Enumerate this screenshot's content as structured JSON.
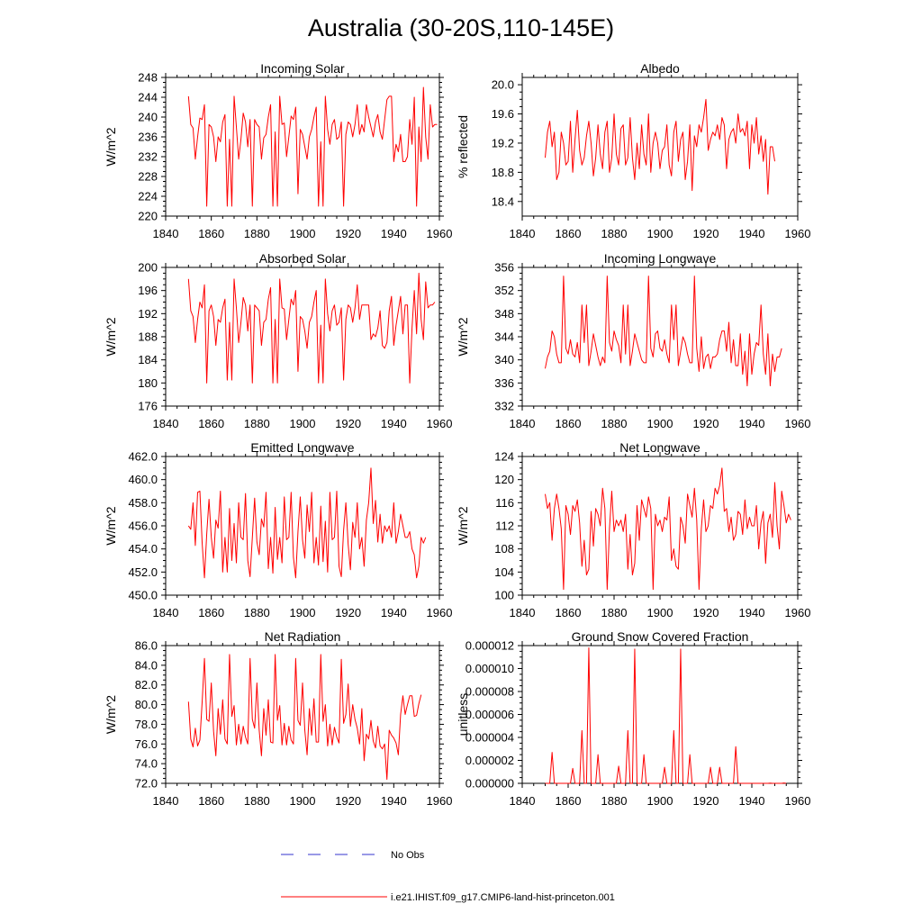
{
  "title": "Australia (30-20S,110-145E)",
  "legend": [
    {
      "label": "No Obs",
      "color": "#3333cc",
      "style": "dashed"
    },
    {
      "label": "i.e21.IHIST.f09_g17.CMIP6-land-hist-princeton.001",
      "color": "#ff0000",
      "style": "solid"
    }
  ],
  "chart_data": [
    {
      "type": "line",
      "title": "Incoming Solar",
      "ylabel": "W/m^2",
      "xlim": [
        1840,
        1960
      ],
      "ylim": [
        220,
        248
      ],
      "xticks": [
        1840,
        1860,
        1880,
        1900,
        1920,
        1940,
        1960
      ],
      "yticks": [
        "220",
        "224",
        "228",
        "232",
        "236",
        "240",
        "244",
        "248"
      ],
      "color": "#ff0000",
      "x_start": 1850,
      "values": [
        244.2,
        238.5,
        237.8,
        231.5,
        236.0,
        239.8,
        239.5,
        242.5,
        222.0,
        238.5,
        238.0,
        236.0,
        231.0,
        236.0,
        235.0,
        239.0,
        240.5,
        222.0,
        235.5,
        222.0,
        244.2,
        238.0,
        231.5,
        235.5,
        240.8,
        239.0,
        234.0,
        239.5,
        222.0,
        239.5,
        238.5,
        238.0,
        231.5,
        235.8,
        236.5,
        240.0,
        242.5,
        222.0,
        237.0,
        222.0,
        244.2,
        238.5,
        238.8,
        232.0,
        236.0,
        240.2,
        239.5,
        242.0,
        224.5,
        237.5,
        236.5,
        234.0,
        231.5,
        236.0,
        237.5,
        240.0,
        242.0,
        222.0,
        235.0,
        222.0,
        244.2,
        237.5,
        234.5,
        238.5,
        239.5,
        235.5,
        236.0,
        239.0,
        222.0,
        236.5,
        239.0,
        238.5,
        236.0,
        238.5,
        242.5,
        236.5,
        238.5,
        237.0,
        242.5,
        240.0,
        238.0,
        236.0,
        239.0,
        240.5,
        237.0,
        235.5,
        239.5,
        243.5,
        244.2,
        244.2,
        231.0,
        234.5,
        233.0,
        236.5,
        231.0,
        231.0,
        232.0,
        239.5,
        234.5,
        244.0,
        222.0,
        238.0,
        231.0,
        246.0,
        236.0,
        231.5,
        242.5,
        238.0,
        238.5,
        238.5
      ]
    },
    {
      "type": "line",
      "title": "Albedo",
      "ylabel": "% reflected",
      "xlim": [
        1840,
        1960
      ],
      "ylim": [
        18.2,
        20.1
      ],
      "xticks": [
        1840,
        1860,
        1880,
        1900,
        1920,
        1940,
        1960
      ],
      "yticks": [
        "18.4",
        "18.8",
        "19.2",
        "19.6",
        "20.0"
      ],
      "color": "#ff0000",
      "x_start": 1850,
      "values": [
        19.0,
        19.35,
        19.5,
        19.15,
        19.35,
        18.7,
        18.8,
        19.35,
        19.2,
        18.9,
        18.95,
        19.5,
        18.8,
        19.25,
        19.65,
        19.1,
        18.9,
        19.0,
        19.3,
        19.5,
        19.2,
        18.75,
        19.0,
        19.45,
        19.05,
        18.85,
        19.35,
        19.5,
        18.8,
        19.0,
        19.6,
        19.05,
        18.9,
        19.4,
        19.45,
        18.9,
        19.0,
        19.55,
        19.0,
        18.7,
        19.2,
        18.85,
        19.45,
        19.05,
        18.9,
        19.6,
        18.8,
        19.2,
        19.35,
        19.2,
        18.85,
        19.1,
        19.15,
        19.45,
        18.9,
        18.75,
        19.35,
        19.5,
        18.95,
        19.25,
        19.35,
        18.7,
        18.95,
        19.45,
        18.55,
        19.3,
        19.15,
        19.45,
        19.35,
        19.55,
        19.8,
        19.1,
        19.25,
        19.35,
        19.3,
        19.45,
        19.25,
        19.55,
        19.45,
        18.85,
        19.25,
        19.35,
        19.4,
        19.2,
        19.6,
        19.35,
        19.4,
        19.3,
        19.5,
        18.85,
        19.45,
        19.2,
        19.55,
        19.05,
        19.3,
        18.95,
        19.25,
        18.5,
        19.15,
        19.15,
        18.95
      ]
    },
    {
      "type": "line",
      "title": "Absorbed Solar",
      "ylabel": "W/m^2",
      "xlim": [
        1840,
        1960
      ],
      "ylim": [
        176,
        200
      ],
      "xticks": [
        1840,
        1860,
        1880,
        1900,
        1920,
        1940,
        1960
      ],
      "yticks": [
        "176",
        "180",
        "184",
        "188",
        "192",
        "196",
        "200"
      ],
      "color": "#ff0000",
      "x_start": 1850,
      "values": [
        198.0,
        192.5,
        191.5,
        187.0,
        191.0,
        194.0,
        193.0,
        197.0,
        180.0,
        192.5,
        193.5,
        191.5,
        186.5,
        191.0,
        190.5,
        193.0,
        194.5,
        180.5,
        190.5,
        180.5,
        198.0,
        193.0,
        187.0,
        190.5,
        194.8,
        193.5,
        189.0,
        193.5,
        180.0,
        193.5,
        193.0,
        192.5,
        186.5,
        190.5,
        191.0,
        194.5,
        196.5,
        180.0,
        191.0,
        180.0,
        198.0,
        193.0,
        192.8,
        187.5,
        191.0,
        194.5,
        193.5,
        196.0,
        182.0,
        191.5,
        191.0,
        189.0,
        186.0,
        190.5,
        191.5,
        194.0,
        196.0,
        180.0,
        190.0,
        180.0,
        198.0,
        192.0,
        189.0,
        192.5,
        193.5,
        190.0,
        190.5,
        193.0,
        180.5,
        191.0,
        193.5,
        193.0,
        190.5,
        193.0,
        197.0,
        191.0,
        193.5,
        193.5,
        193.5,
        193.5,
        187.5,
        188.5,
        188.0,
        189.5,
        192.5,
        186.5,
        186.0,
        187.0,
        192.5,
        195.0,
        186.5,
        190.0,
        192.5,
        195.0,
        188.5,
        193.5,
        193.5,
        180.0,
        189.5,
        196.0,
        188.5,
        199.0,
        191.0,
        187.5,
        197.5,
        193.0,
        193.5,
        193.5,
        194.0
      ]
    },
    {
      "type": "line",
      "title": "Incoming Longwave",
      "ylabel": "W/m^2",
      "xlim": [
        1840,
        1960
      ],
      "ylim": [
        332,
        356
      ],
      "xticks": [
        1840,
        1860,
        1880,
        1900,
        1920,
        1940,
        1960
      ],
      "yticks": [
        "332",
        "336",
        "340",
        "344",
        "348",
        "352",
        "356"
      ],
      "color": "#ff0000",
      "x_start": 1850,
      "values": [
        338.5,
        340.5,
        341.5,
        345.0,
        344.0,
        341.0,
        339.5,
        339.5,
        354.5,
        342.0,
        341.0,
        343.5,
        341.0,
        340.5,
        343.0,
        339.5,
        349.5,
        343.0,
        349.5,
        339.0,
        341.5,
        344.5,
        342.5,
        340.5,
        339.0,
        340.5,
        339.5,
        354.5,
        343.0,
        341.5,
        345.0,
        343.5,
        342.5,
        339.5,
        349.5,
        341.0,
        349.5,
        339.0,
        341.5,
        344.5,
        343.0,
        341.5,
        340.0,
        339.5,
        339.5,
        354.5,
        342.0,
        340.5,
        344.5,
        345.0,
        342.0,
        341.5,
        343.5,
        341.0,
        339.5,
        349.5,
        343.5,
        349.5,
        339.0,
        341.5,
        344.0,
        343.0,
        341.0,
        339.5,
        339.5,
        354.5,
        342.0,
        338.0,
        344.0,
        338.5,
        340.5,
        341.0,
        338.5,
        340.5,
        340.5,
        341.0,
        343.5,
        345.0,
        345.0,
        341.5,
        346.5,
        339.5,
        343.5,
        339.0,
        339.0,
        344.5,
        337.5,
        341.5,
        335.5,
        344.5,
        337.5,
        341.0,
        343.0,
        342.5,
        349.5,
        341.0,
        337.5,
        344.5,
        335.5,
        341.0,
        338.0,
        340.5,
        340.5,
        342.0
      ]
    },
    {
      "type": "line",
      "title": "Emitted Longwave",
      "ylabel": "W/m^2",
      "xlim": [
        1840,
        1960
      ],
      "ylim": [
        450.0,
        462.0
      ],
      "xticks": [
        1840,
        1860,
        1880,
        1900,
        1920,
        1940,
        1960
      ],
      "yticks": [
        "450.0",
        "452.0",
        "454.0",
        "456.0",
        "458.0",
        "460.0",
        "462.0"
      ],
      "color": "#ff0000",
      "x_start": 1850,
      "values": [
        456.0,
        455.7,
        458.0,
        454.3,
        458.9,
        459.0,
        454.5,
        451.5,
        455.3,
        458.3,
        455.0,
        453.2,
        456.5,
        455.8,
        459.0,
        452.0,
        455.0,
        452.0,
        457.5,
        453.0,
        456.2,
        452.8,
        458.0,
        455.0,
        454.8,
        458.8,
        453.0,
        451.6,
        455.0,
        458.4,
        454.6,
        453.5,
        456.6,
        455.9,
        458.9,
        452.3,
        455.0,
        451.9,
        457.6,
        453.1,
        455.0,
        452.8,
        458.5,
        454.8,
        455.0,
        458.9,
        453.3,
        451.5,
        455.5,
        458.5,
        454.8,
        453.2,
        457.8,
        455.5,
        458.9,
        452.8,
        455.0,
        452.6,
        457.7,
        452.9,
        456.4,
        452.0,
        458.9,
        454.8,
        455.0,
        459.0,
        452.5,
        451.6,
        455.6,
        458.0,
        454.4,
        452.2,
        456.3,
        455.0,
        458.0,
        454.0,
        455.0,
        452.5,
        456.5,
        458.0,
        461.0,
        456.2,
        458.2,
        454.6,
        457.0,
        454.5,
        456.0,
        455.5,
        456.0,
        455.0,
        458.0,
        454.5,
        455.5,
        457.0,
        456.0,
        455.0,
        455.0,
        455.5,
        454.0,
        453.5,
        451.5,
        452.5,
        455.0,
        454.5,
        455.0
      ]
    },
    {
      "type": "line",
      "title": "Net Longwave",
      "ylabel": "W/m^2",
      "xlim": [
        1840,
        1960
      ],
      "ylim": [
        100,
        124
      ],
      "xticks": [
        1840,
        1860,
        1880,
        1900,
        1920,
        1940,
        1960
      ],
      "yticks": [
        "100",
        "104",
        "108",
        "112",
        "116",
        "120",
        "124"
      ],
      "color": "#ff0000",
      "x_start": 1850,
      "values": [
        117.5,
        115.0,
        116.0,
        109.5,
        115.0,
        117.5,
        115.0,
        111.5,
        101.0,
        115.5,
        114.0,
        110.5,
        115.5,
        114.5,
        116.5,
        112.5,
        105.0,
        109.5,
        103.5,
        104.5,
        114.5,
        108.5,
        115.0,
        114.0,
        112.0,
        118.5,
        115.0,
        101.0,
        111.5,
        118.0,
        111.0,
        113.0,
        112.0,
        113.0,
        111.0,
        114.0,
        104.5,
        110.5,
        103.5,
        105.5,
        115.5,
        109.5,
        116.5,
        115.0,
        113.5,
        117.0,
        115.0,
        101.0,
        114.0,
        112.0,
        113.0,
        111.0,
        113.5,
        113.0,
        117.0,
        106.0,
        108.0,
        105.0,
        104.5,
        113.5,
        112.0,
        109.0,
        117.5,
        115.5,
        113.5,
        118.5,
        113.0,
        101.0,
        111.5,
        116.5,
        111.0,
        112.0,
        115.5,
        115.0,
        118.5,
        117.5,
        119.0,
        122.0,
        114.5,
        115.0,
        111.0,
        113.5,
        109.5,
        110.5,
        114.5,
        114.0,
        110.5,
        116.5,
        111.5,
        113.5,
        112.0,
        112.0,
        115.5,
        108.0,
        112.5,
        114.5,
        105.5,
        112.5,
        114.0,
        110.0,
        119.5,
        112.0,
        108.0,
        118.0,
        115.5,
        112.5,
        114.0,
        113.0
      ]
    },
    {
      "type": "line",
      "title": "Net Radiation",
      "ylabel": "W/m^2",
      "xlim": [
        1840,
        1960
      ],
      "ylim": [
        72.0,
        86.0
      ],
      "xticks": [
        1840,
        1860,
        1880,
        1900,
        1920,
        1940,
        1960
      ],
      "yticks": [
        "72.0",
        "74.0",
        "76.0",
        "78.0",
        "80.0",
        "82.0",
        "84.0",
        "86.0"
      ],
      "color": "#ff0000",
      "x_start": 1850,
      "values": [
        80.3,
        76.5,
        75.7,
        77.6,
        75.8,
        76.4,
        80.3,
        84.7,
        78.5,
        78.3,
        82.2,
        77.3,
        74.8,
        79.6,
        77.0,
        80.5,
        76.5,
        76.0,
        85.1,
        78.8,
        79.9,
        75.9,
        78.0,
        76.0,
        77.8,
        76.7,
        76.0,
        84.7,
        78.5,
        77.6,
        82.2,
        77.4,
        74.8,
        79.6,
        76.9,
        80.5,
        76.2,
        76.1,
        85.1,
        78.4,
        79.9,
        75.9,
        78.1,
        75.9,
        77.8,
        76.4,
        76.0,
        84.7,
        78.4,
        77.9,
        82.2,
        77.4,
        74.9,
        79.6,
        76.9,
        80.6,
        76.2,
        76.2,
        85.1,
        78.3,
        80.0,
        75.8,
        78.0,
        75.9,
        77.7,
        76.7,
        76.1,
        84.6,
        78.1,
        79.0,
        82.1,
        77.8,
        80.0,
        78.5,
        77.6,
        76.0,
        79.6,
        74.3,
        77.0,
        76.5,
        78.4,
        76.3,
        75.6,
        77.8,
        75.8,
        75.5,
        76.0,
        72.4,
        77.4,
        76.9,
        76.6,
        76.1,
        74.9,
        79.0,
        80.9,
        79.0,
        80.0,
        80.9,
        80.9,
        78.8,
        78.9,
        80.1,
        81.0
      ]
    },
    {
      "type": "line",
      "title": "Ground Snow Covered Fraction",
      "ylabel": "unitless",
      "xlim": [
        1840,
        1960
      ],
      "ylim": [
        0,
        1.2e-05
      ],
      "xticks": [
        1840,
        1860,
        1880,
        1900,
        1920,
        1940,
        1960
      ],
      "yticks": [
        "0.000000",
        "0.000002",
        "0.000004",
        "0.000006",
        "0.000008",
        "0.000010",
        "0.000012"
      ],
      "color": "#ff0000",
      "x_start": 1850,
      "values": [
        0,
        0,
        0,
        2.7e-06,
        0,
        0,
        0,
        0,
        0,
        0,
        0,
        0,
        1.3e-06,
        0,
        0,
        0,
        4.6e-06,
        0,
        0,
        1.18e-05,
        0,
        0,
        0,
        2.5e-06,
        0,
        0,
        0,
        0,
        0,
        0,
        0,
        0,
        1.5e-06,
        0,
        0,
        0,
        4.6e-06,
        0,
        0,
        1.17e-05,
        0,
        0,
        0,
        2.5e-06,
        0,
        0,
        0,
        0,
        0,
        0,
        0,
        0,
        1.4e-06,
        0,
        0,
        0,
        4.6e-06,
        0,
        0,
        1.17e-05,
        0,
        0,
        0,
        2.5e-06,
        0,
        0,
        0,
        0,
        0,
        0,
        0,
        0,
        1.4e-06,
        0,
        0,
        0,
        1.4e-06,
        0,
        0,
        0,
        0,
        0,
        0,
        3.2e-06,
        0,
        0,
        0,
        0,
        0,
        0,
        0,
        0,
        0,
        0,
        0,
        0,
        0,
        0,
        2e-08,
        0,
        0,
        0,
        0,
        0,
        3e-08,
        0
      ]
    }
  ]
}
